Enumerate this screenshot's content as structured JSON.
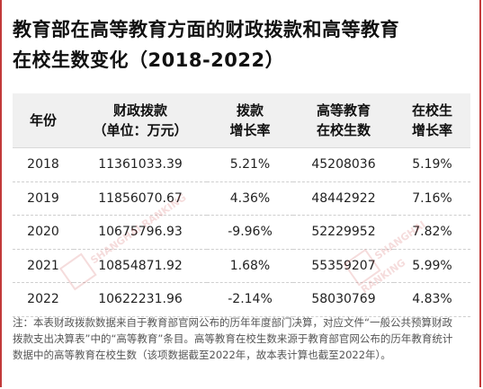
{
  "title_line1": "教育部在高等教育方面的财政拨款和高等教育",
  "title_line2": "在校生数变化（2018-2022）",
  "chart_data": {
    "type": "table",
    "columns": [
      {
        "line1": "年份",
        "line2": ""
      },
      {
        "line1": "财政拨款",
        "line2": "（单位：万元）"
      },
      {
        "line1": "拨款",
        "line2": "增长率"
      },
      {
        "line1": "高等教育",
        "line2": "在校生数"
      },
      {
        "line1": "在校生",
        "line2": "增长率"
      }
    ],
    "rows": [
      [
        "2018",
        "11361033.39",
        "5.21%",
        "45208036",
        "5.19%"
      ],
      [
        "2019",
        "11856070.67",
        "4.36%",
        "48442922",
        "7.16%"
      ],
      [
        "2020",
        "10675796.93",
        "-9.96%",
        "52229952",
        "7.82%"
      ],
      [
        "2021",
        "10854871.92",
        "1.68%",
        "55359207",
        "5.99%"
      ],
      [
        "2022",
        "10622231.96",
        "-2.14%",
        "58030769",
        "4.83%"
      ]
    ]
  },
  "note": "注：本表财政拨款数据来自于教育部官网公布的历年年度部门决算，对应文件“一般公共预算财政拨款支出决算表”中的“高等教育”条目。高等教育在校生数来源于教育部官网公布的历年教育统计数据中的高等教育在校生数（该项数据截至2022年，故本表计算也截至2022年）。",
  "watermark": {
    "text": "SHANGHAI RANKING"
  },
  "colors": {
    "border": "#c23a3a",
    "header_bg": "#f0f0f0",
    "watermark": "#c83c3c"
  }
}
